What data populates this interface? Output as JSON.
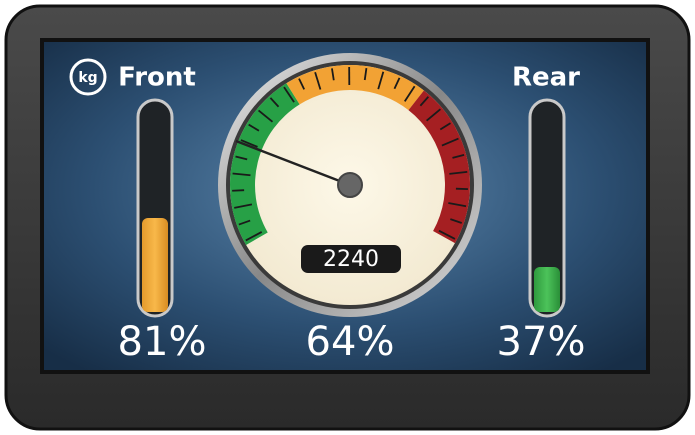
{
  "unit": "kg",
  "front": {
    "label": "Front",
    "percent": "81%"
  },
  "gauge": {
    "reading": "2240",
    "percent": "64%"
  },
  "rear": {
    "label": "Rear",
    "percent": "37%"
  }
}
